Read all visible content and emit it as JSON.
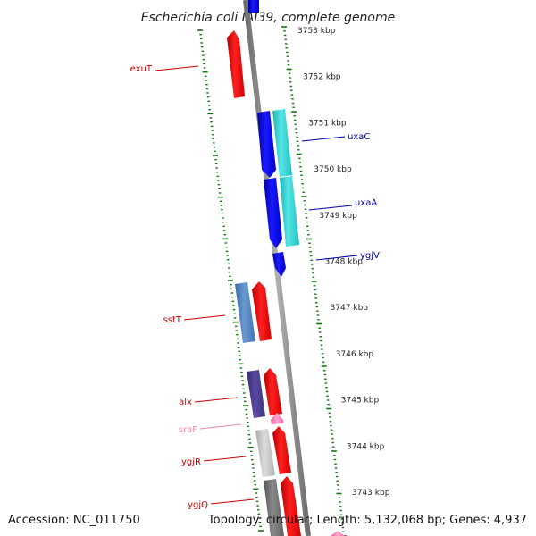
{
  "title": "Escherichia coli IAI39, complete genome",
  "footer": {
    "accession": "Accession: NC_011750",
    "summary": "Topology: circular; Length: 5,132,068 bp; Genes: 4,937"
  },
  "scale_labels": [
    "3753 kbp",
    "3752 kbp",
    "3751 kbp",
    "3750 kbp",
    "3749 kbp",
    "3748 kbp",
    "3747 kbp",
    "3746 kbp",
    "3745 kbp",
    "3744 kbp",
    "3743 kbp"
  ],
  "gene_labels": [
    {
      "name": "exuT",
      "color": "#cc0000"
    },
    {
      "name": "uxaC",
      "color": "#0000aa"
    },
    {
      "name": "uxaA",
      "color": "#0000aa"
    },
    {
      "name": "ygjV",
      "color": "#0000aa"
    },
    {
      "name": "sstT",
      "color": "#cc0000"
    },
    {
      "name": "alx",
      "color": "#cc0000"
    },
    {
      "name": "sraF",
      "color": "#ee88aa"
    },
    {
      "name": "ygjR",
      "color": "#cc0000"
    },
    {
      "name": "ygjQ",
      "color": "#cc0000"
    }
  ],
  "colors": {
    "backbone": "#8a8a8a",
    "scale_dash": "#117711",
    "red": "#ff0000",
    "blue": "#0000ee",
    "cyan": "#22cccc",
    "steelblue": "#4477bb",
    "indigo": "#443388",
    "pink": "#ff77bb",
    "lightgray": "#bbbbbb",
    "darkgray": "#666666"
  }
}
